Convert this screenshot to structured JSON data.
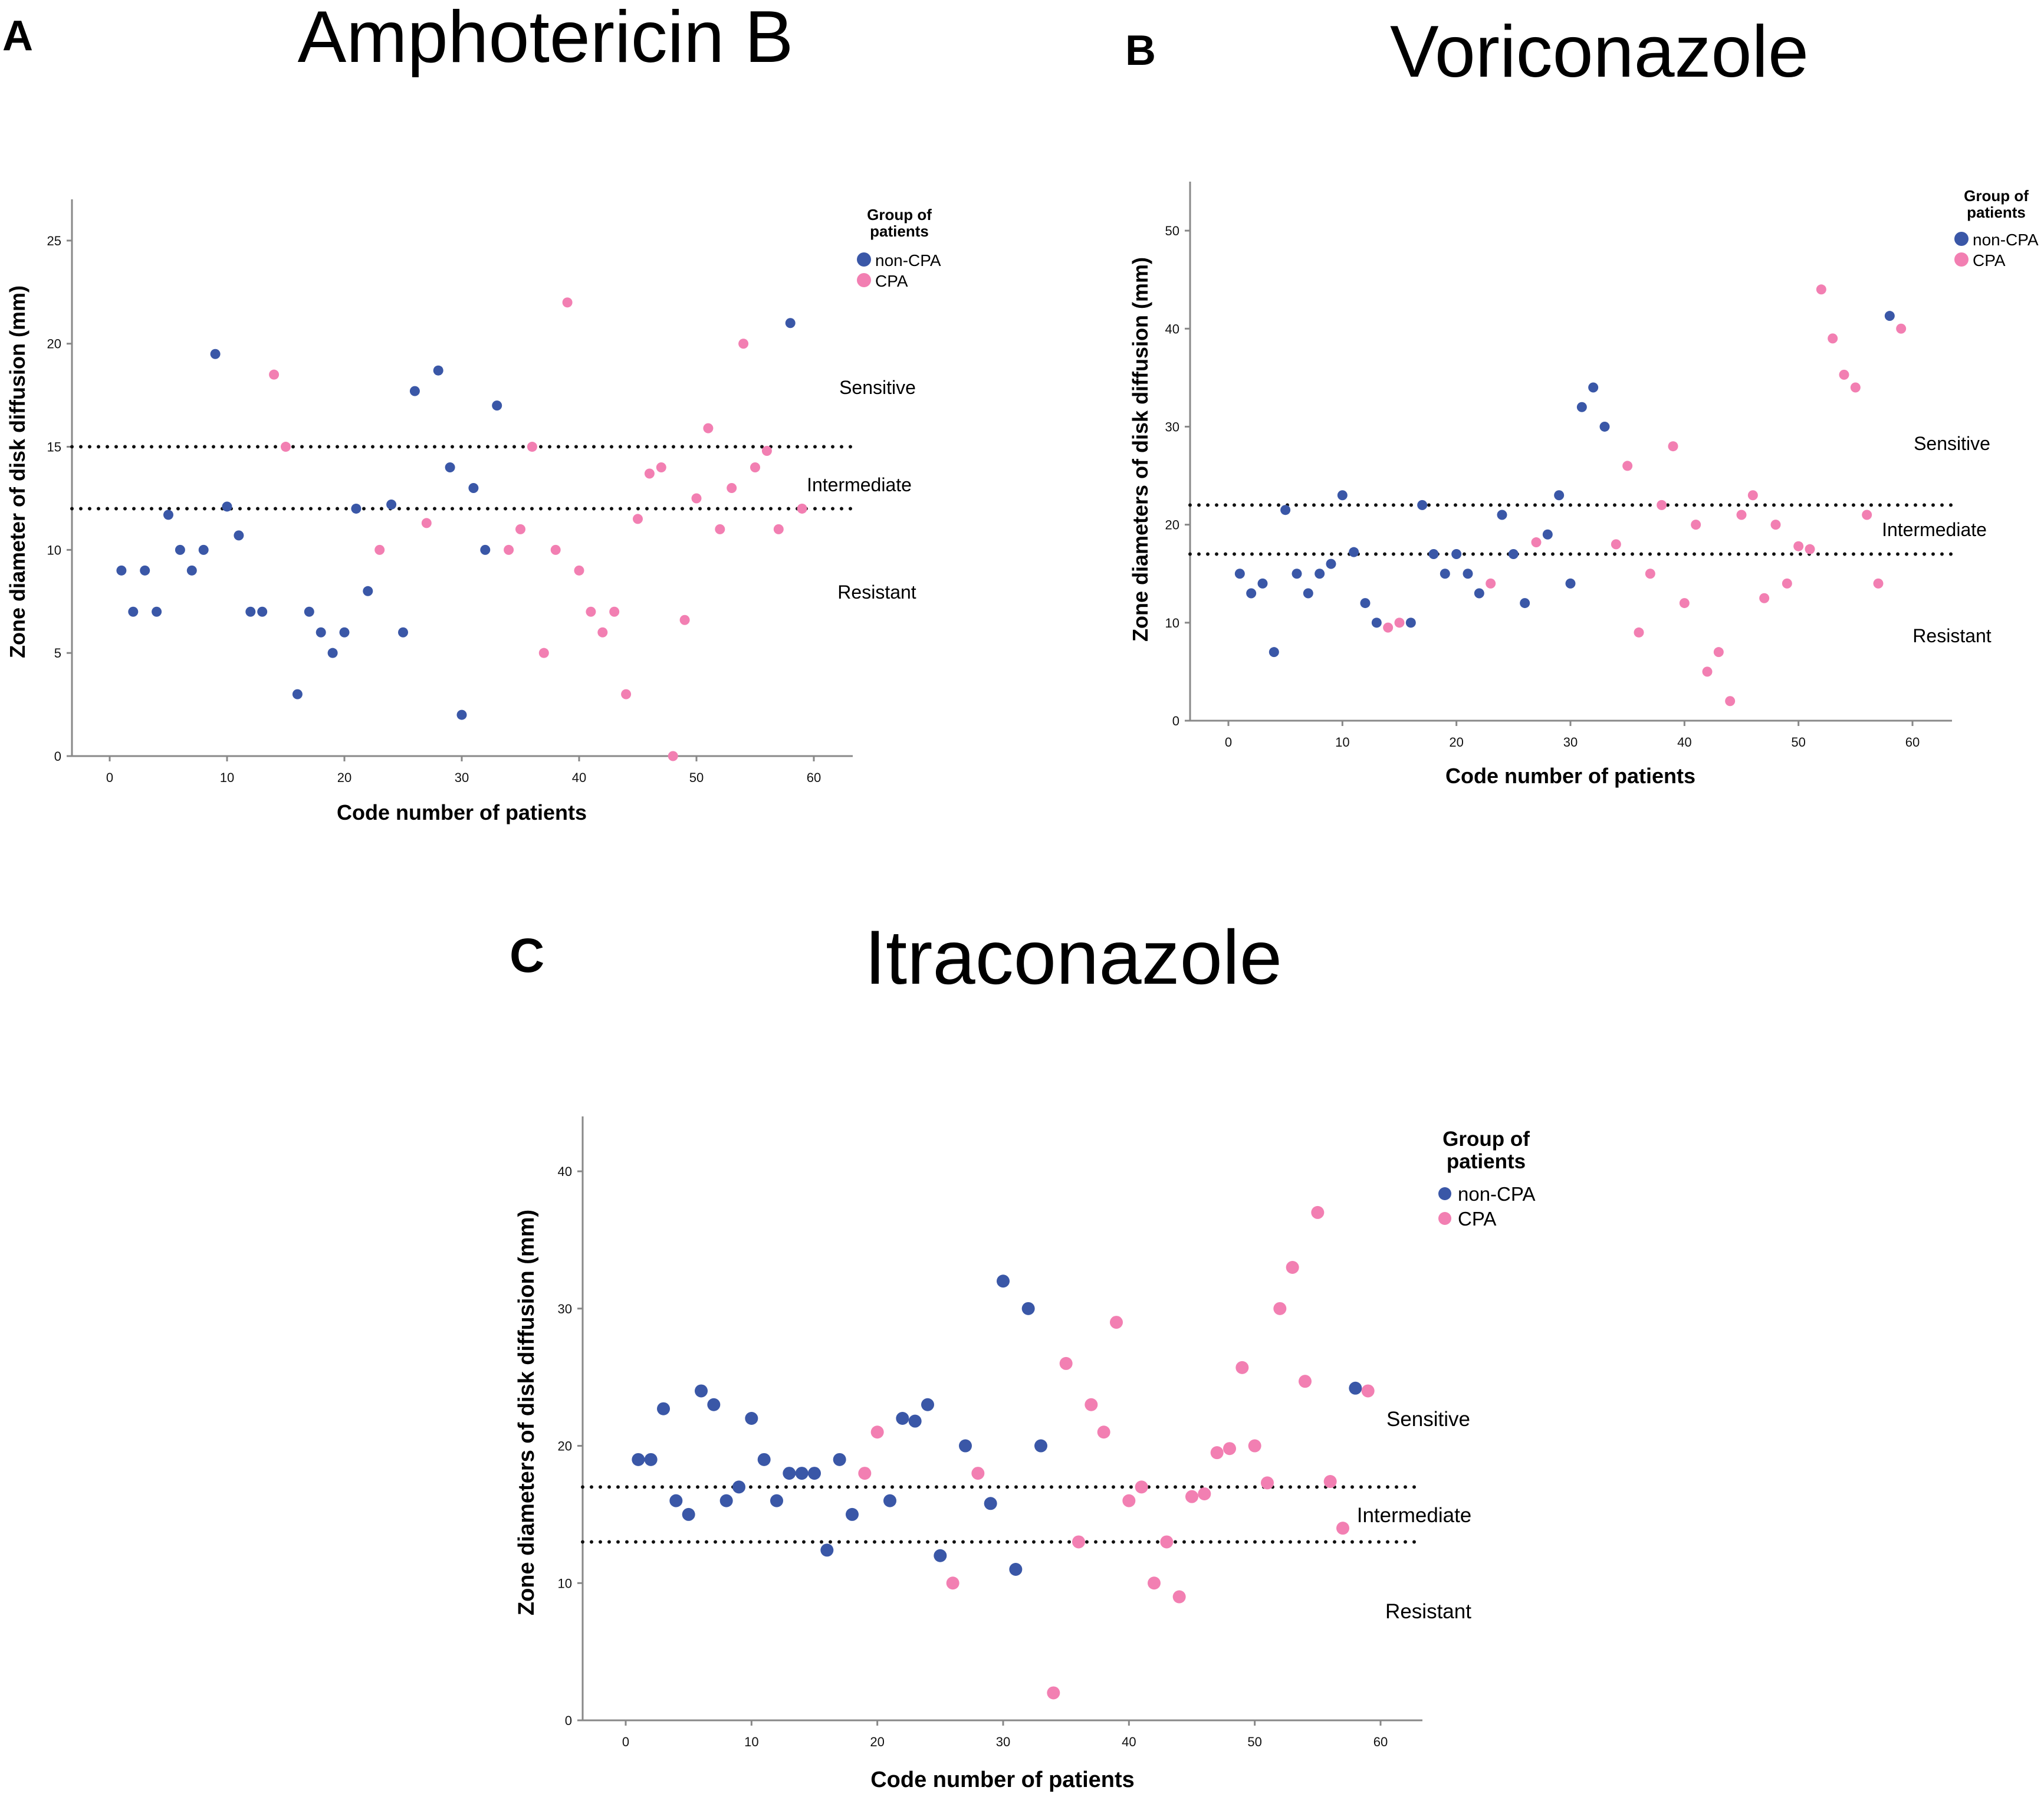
{
  "colors": {
    "non_cpa": "#3a57a7",
    "cpa": "#f27fb2",
    "axis": "#888888",
    "text": "#111111",
    "threshold_line": "#111111"
  },
  "legend": {
    "title_line1": "Group of",
    "title_line2": "patients",
    "non_cpa_label": "non-CPA",
    "cpa_label": "CPA"
  },
  "panels": [
    {
      "panel_letter": "A",
      "title": "Amphotericin B",
      "xlabel": "Code number of patients",
      "ylabel": "Zone diameter of disk diffusion (mm)",
      "region_sensitive": "Sensitive",
      "region_intermediate": "Intermediate",
      "region_resistant": "Resistant"
    },
    {
      "panel_letter": "B",
      "title": "Voriconazole",
      "xlabel": "Code number of patients",
      "ylabel": "Zone diameters of disk diffusion (mm)",
      "region_sensitive": "Sensitive",
      "region_intermediate": "Intermediate",
      "region_resistant": "Resistant"
    },
    {
      "panel_letter": "C",
      "title": "Itraconazole",
      "xlabel": "Code number of patients",
      "ylabel": "Zone diameters of disk diffusion (mm)",
      "region_sensitive": "Sensitive",
      "region_intermediate": "Intermediate",
      "region_resistant": "Resistant"
    }
  ],
  "chart_data": [
    {
      "type": "scatter",
      "title": "Amphotericin B",
      "xlabel": "Code number of patients",
      "ylabel": "Zone diameter of disk diffusion (mm)",
      "xlim": [
        -3,
        63
      ],
      "ylim": [
        0,
        27
      ],
      "xticks": [
        0,
        10,
        20,
        30,
        40,
        50,
        60
      ],
      "yticks": [
        0,
        5,
        10,
        15,
        20,
        25
      ],
      "thresholds": [
        15,
        12
      ],
      "legend_position": "top-right",
      "series": [
        {
          "name": "non-CPA",
          "x": [
            1,
            2,
            3,
            4,
            5,
            6,
            7,
            8,
            9,
            10,
            11,
            12,
            13,
            16,
            17,
            18,
            19,
            20,
            21,
            22,
            24,
            25,
            26,
            28,
            29,
            30,
            31,
            32,
            33,
            58
          ],
          "y": [
            9,
            7,
            9,
            7,
            11.7,
            10,
            9,
            10,
            19.5,
            12.1,
            10.7,
            7,
            7,
            3,
            7,
            6,
            5,
            6,
            12,
            8,
            12.2,
            6,
            17.7,
            18.7,
            14,
            2,
            13,
            10,
            17,
            21
          ]
        },
        {
          "name": "CPA",
          "x": [
            14,
            15,
            23,
            27,
            34,
            35,
            36,
            37,
            38,
            39,
            40,
            41,
            42,
            43,
            44,
            45,
            46,
            47,
            48,
            49,
            50,
            51,
            52,
            53,
            54,
            55,
            56,
            57,
            59
          ],
          "y": [
            18.5,
            15,
            10,
            11.3,
            10,
            11,
            15,
            5,
            10,
            22,
            9,
            7,
            6,
            7,
            3,
            11.5,
            13.7,
            14,
            0,
            6.6,
            12.5,
            15.9,
            11,
            13,
            20,
            14,
            14.8,
            11,
            12
          ]
        }
      ]
    },
    {
      "type": "scatter",
      "title": "Voriconazole",
      "xlabel": "Code number of patients",
      "ylabel": "Zone diameters of disk diffusion (mm)",
      "xlim": [
        -4,
        63
      ],
      "ylim": [
        0,
        55
      ],
      "xticks": [
        0,
        10,
        20,
        30,
        40,
        50,
        60
      ],
      "yticks": [
        0,
        10,
        20,
        30,
        40,
        50
      ],
      "thresholds": [
        22,
        17
      ],
      "legend_position": "top-right",
      "series": [
        {
          "name": "non-CPA",
          "x": [
            1,
            2,
            3,
            4,
            5,
            6,
            7,
            8,
            9,
            10,
            11,
            12,
            13,
            16,
            17,
            18,
            19,
            20,
            21,
            22,
            24,
            25,
            26,
            28,
            29,
            30,
            31,
            32,
            33,
            58
          ],
          "y": [
            15,
            13,
            14,
            7,
            21.5,
            15,
            13,
            15,
            16,
            23,
            17.2,
            12,
            10,
            10,
            22,
            17,
            15,
            17,
            15,
            13,
            21,
            17,
            12,
            19,
            23,
            14,
            32,
            34,
            30,
            41.3
          ]
        },
        {
          "name": "CPA",
          "x": [
            14,
            15,
            23,
            27,
            34,
            35,
            36,
            37,
            38,
            39,
            40,
            41,
            42,
            43,
            44,
            45,
            46,
            47,
            48,
            49,
            50,
            51,
            52,
            53,
            54,
            55,
            56,
            57,
            59
          ],
          "y": [
            9.5,
            10,
            14,
            18.2,
            18,
            26,
            9,
            15,
            22,
            28,
            12,
            20,
            5,
            7,
            2,
            21,
            23,
            12.5,
            20,
            14,
            17.8,
            17.5,
            44,
            39,
            35.3,
            34,
            21,
            14,
            40
          ]
        }
      ]
    },
    {
      "type": "scatter",
      "title": "Itraconazole",
      "xlabel": "Code number of patients",
      "ylabel": "Zone diameters of disk diffusion (mm)",
      "xlim": [
        -3,
        63
      ],
      "ylim": [
        0,
        44
      ],
      "xticks": [
        0,
        10,
        20,
        30,
        40,
        50,
        60
      ],
      "yticks": [
        0,
        10,
        20,
        30,
        40
      ],
      "thresholds": [
        17,
        13
      ],
      "legend_position": "top-right",
      "series": [
        {
          "name": "non-CPA",
          "x": [
            1,
            2,
            3,
            4,
            5,
            6,
            7,
            8,
            9,
            10,
            11,
            12,
            13,
            14,
            15,
            16,
            17,
            18,
            21,
            22,
            23,
            24,
            25,
            27,
            29,
            30,
            31,
            32,
            33,
            58
          ],
          "y": [
            19,
            19,
            22.7,
            16,
            15,
            24,
            23,
            16,
            17,
            22,
            19,
            16,
            18,
            18,
            18,
            12.4,
            19,
            15,
            16,
            22,
            21.8,
            23,
            12,
            20,
            15.8,
            32,
            11,
            30,
            20,
            24.2
          ]
        },
        {
          "name": "CPA",
          "x": [
            19,
            20,
            26,
            28,
            34,
            35,
            36,
            37,
            38,
            39,
            40,
            41,
            42,
            43,
            44,
            45,
            46,
            47,
            48,
            49,
            50,
            51,
            52,
            53,
            54,
            55,
            56,
            57,
            59
          ],
          "y": [
            18,
            21,
            10,
            18,
            2,
            26,
            13,
            23,
            21,
            29,
            16,
            17,
            10,
            13,
            9,
            16.3,
            16.5,
            19.5,
            19.8,
            25.7,
            20,
            17.3,
            30,
            33,
            24.7,
            37,
            17.4,
            14,
            24
          ]
        }
      ]
    }
  ]
}
